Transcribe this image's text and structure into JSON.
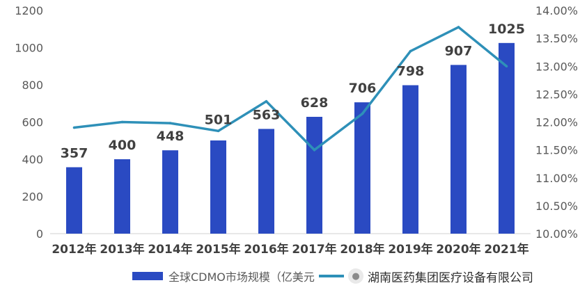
{
  "chart_data": {
    "type": "bar",
    "categories": [
      "2012年",
      "2013年",
      "2014年",
      "2015年",
      "2016年",
      "2017年",
      "2018年",
      "2019年",
      "2020年",
      "2021年"
    ],
    "series": [
      {
        "name": "全球CDMO市场规模（亿美元）",
        "type": "bar",
        "axis": "left",
        "color": "#2a4ac2",
        "values": [
          357,
          400,
          448,
          501,
          563,
          628,
          706,
          798,
          907,
          1025
        ]
      },
      {
        "type": "line",
        "axis": "right",
        "color": "#2e90b8",
        "values": [
          11.9,
          12.0,
          11.98,
          11.84,
          12.37,
          11.5,
          12.15,
          13.27,
          13.7,
          13.0
        ]
      }
    ],
    "ylim": [
      0,
      1200
    ],
    "yticks": [
      "0",
      "200",
      "400",
      "600",
      "800",
      "1000",
      "1200"
    ],
    "y2lim": [
      10.0,
      14.0
    ],
    "y2ticks": [
      "10.00%",
      "10.50%",
      "11.00%",
      "11.50%",
      "12.00%",
      "12.50%",
      "13.00%",
      "13.50%",
      "14.00%"
    ],
    "data_labels": [
      "357",
      "400",
      "448",
      "501",
      "563",
      "628",
      "706",
      "798",
      "907",
      "1025"
    ],
    "grid": false,
    "legend_position": "bottom"
  },
  "legend": {
    "bar_label": "全球CDMO市场规模（亿美元",
    "line_icon": "line-swatch"
  },
  "watermark": {
    "icon": "wechat-icon",
    "text": "湖南医药集团医疗设备有限公司"
  }
}
